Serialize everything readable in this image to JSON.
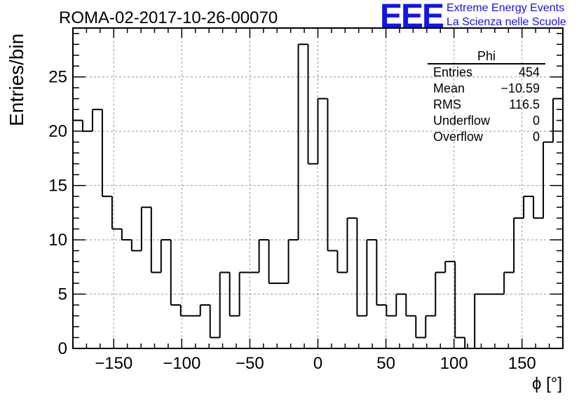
{
  "header": {
    "title": "ROMA-02-2017-10-26-00070",
    "logo_text": "EEE",
    "logo_line1": "Extreme Energy Events",
    "logo_line2": "La Scienza nelle Scuole"
  },
  "stats_box": {
    "name": "Phi",
    "rows": [
      {
        "label": "Entries",
        "value": "454"
      },
      {
        "label": "Mean",
        "value": "−10.59"
      },
      {
        "label": "RMS",
        "value": "116.5"
      },
      {
        "label": "Underflow",
        "value": "0"
      },
      {
        "label": "Overflow",
        "value": "0"
      }
    ]
  },
  "colors": {
    "accent": "#1414e6",
    "line": "#000000",
    "grid": "#999999"
  },
  "chart_data": {
    "type": "bar",
    "histogram": true,
    "xlabel": "ϕ [°]",
    "ylabel": "Entries/bin",
    "xlim": [
      -180,
      180
    ],
    "ylim": [
      0,
      29.5
    ],
    "bin_width": 7.2,
    "x_ticks": [
      -150,
      -100,
      -50,
      0,
      50,
      100,
      150
    ],
    "y_ticks": [
      0,
      5,
      10,
      15,
      20,
      25
    ],
    "grid": true,
    "values": [
      21,
      20,
      22,
      14,
      11,
      10,
      9,
      13,
      7,
      10,
      4,
      3,
      3,
      4,
      1,
      7,
      3,
      7,
      7,
      10,
      6,
      6,
      10,
      28,
      17,
      23,
      9,
      7,
      12,
      3,
      10,
      4,
      3,
      5,
      3,
      1,
      3,
      7,
      8,
      1,
      0,
      5,
      5,
      5,
      7,
      12,
      14,
      12,
      19,
      23
    ]
  }
}
